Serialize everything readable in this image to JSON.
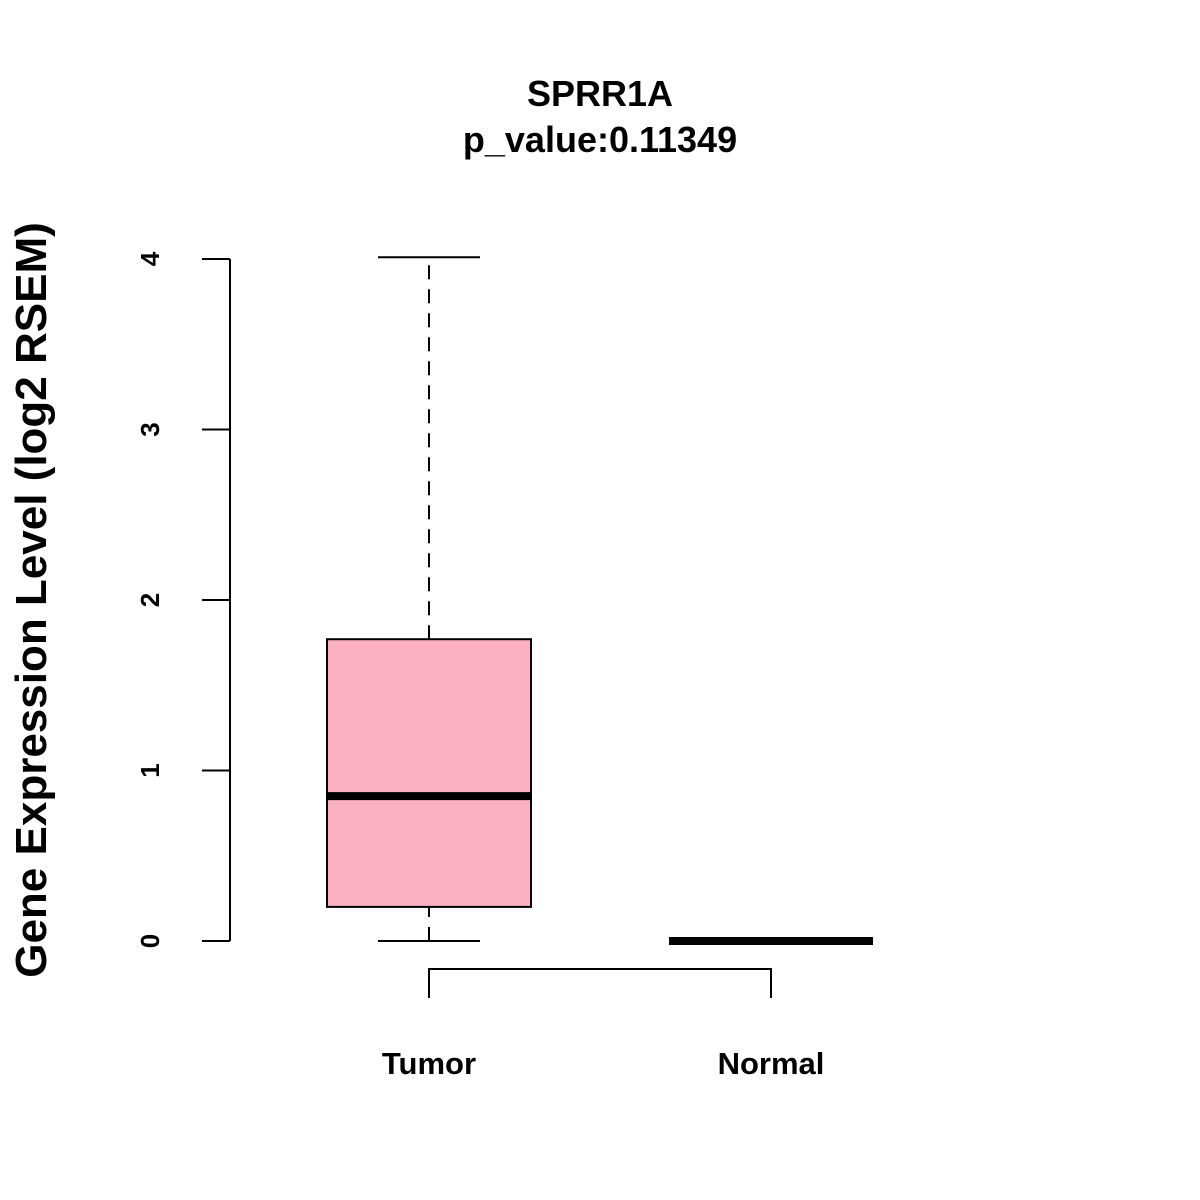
{
  "chart_data": {
    "type": "boxplot",
    "title": "SPRR1A",
    "subtitle": "p_value:0.11349",
    "xlabel": "",
    "ylabel": "Gene Expression Level (log2 RSEM)",
    "ylim": [
      0,
      4
    ],
    "yticks": [
      0,
      1,
      2,
      3,
      4
    ],
    "categories": [
      "Tumor",
      "Normal"
    ],
    "boxes": [
      {
        "name": "Tumor",
        "whisker_low": 0,
        "q1": 0.2,
        "median": 0.85,
        "q3": 1.77,
        "whisker_high": 4.01,
        "fill": "#FBB1C2"
      },
      {
        "name": "Normal",
        "whisker_low": 0,
        "q1": 0,
        "median": 0,
        "q3": 0,
        "whisker_high": 0,
        "fill": "#FBB1C2"
      }
    ],
    "comparison_bracket": [
      "Tumor",
      "Normal"
    ],
    "grid": false,
    "legend": "none"
  }
}
